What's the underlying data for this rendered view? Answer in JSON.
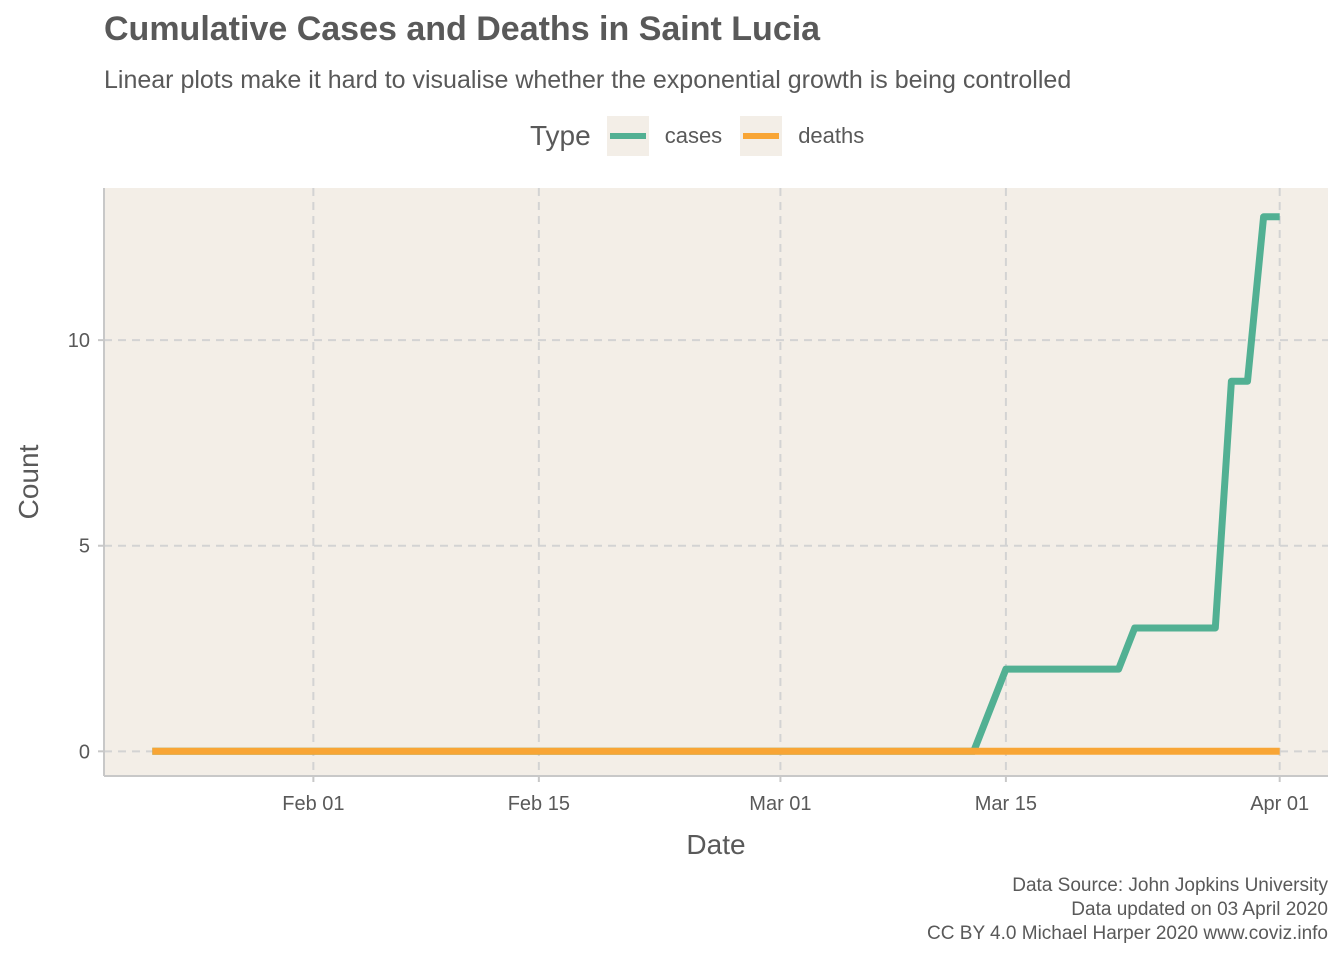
{
  "chart_data": {
    "type": "line",
    "title": "Cumulative Cases and Deaths in Saint Lucia",
    "subtitle": "Linear plots make it hard to visualise whether the exponential growth is being controlled",
    "xlabel": "Date",
    "ylabel": "Count",
    "x_ticks": [
      {
        "date": "2020-02-01",
        "label": "Feb 01"
      },
      {
        "date": "2020-02-15",
        "label": "Feb 15"
      },
      {
        "date": "2020-03-01",
        "label": "Mar 01"
      },
      {
        "date": "2020-03-15",
        "label": "Mar 15"
      },
      {
        "date": "2020-04-01",
        "label": "Apr 01"
      }
    ],
    "y_ticks": [
      0,
      5,
      10
    ],
    "xlim": [
      "2020-01-19",
      "2020-04-04"
    ],
    "ylim": [
      -0.6,
      13.7
    ],
    "grid": true,
    "legend": {
      "title": "Type",
      "placement": "top",
      "entries": [
        "cases",
        "deaths"
      ]
    },
    "series": [
      {
        "name": "cases",
        "color": "#52b093",
        "points": [
          {
            "x": "2020-01-22",
            "y": 0
          },
          {
            "x": "2020-03-13",
            "y": 0
          },
          {
            "x": "2020-03-15",
            "y": 2
          },
          {
            "x": "2020-03-22",
            "y": 2
          },
          {
            "x": "2020-03-23",
            "y": 3
          },
          {
            "x": "2020-03-28",
            "y": 3
          },
          {
            "x": "2020-03-29",
            "y": 9
          },
          {
            "x": "2020-03-30",
            "y": 9
          },
          {
            "x": "2020-03-31",
            "y": 13
          },
          {
            "x": "2020-04-01",
            "y": 13
          }
        ]
      },
      {
        "name": "deaths",
        "color": "#f8a535",
        "points": [
          {
            "x": "2020-01-22",
            "y": 0
          },
          {
            "x": "2020-04-01",
            "y": 0
          }
        ]
      }
    ],
    "caption": [
      "Data Source: John Jopkins University",
      "Data updated on 03 April 2020",
      "CC BY 4.0 Michael Harper 2020 www.coviz.info"
    ]
  },
  "colors": {
    "panel_background": "#f3eee7",
    "grid": "#d3d3d3",
    "axis_line": "#c8c8c8",
    "text": "#595959"
  }
}
